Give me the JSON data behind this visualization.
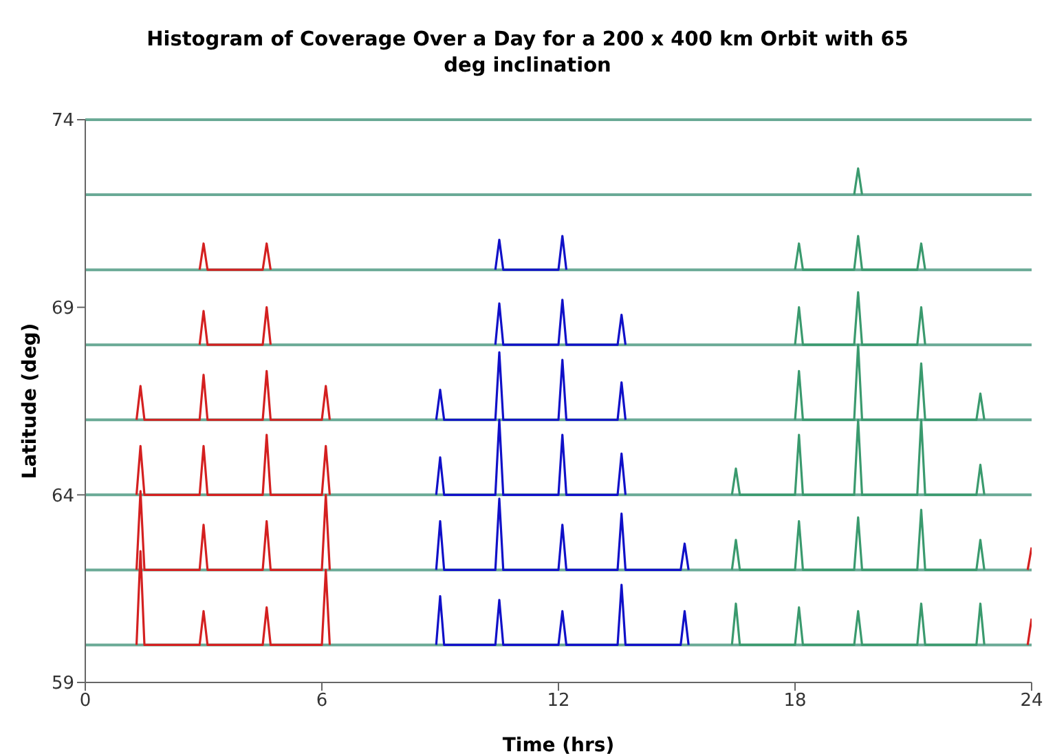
{
  "chart_data": {
    "type": "line",
    "title": "Histogram of Coverage Over a Day for a 200 x 400 km Orbit with 65 deg inclination",
    "xlabel": "Time (hrs)",
    "ylabel": "Latitude (deg)",
    "xlim": [
      0,
      24
    ],
    "xticks": [
      0,
      6,
      12,
      18,
      24
    ],
    "ylim": [
      59,
      74
    ],
    "yticks": [
      59,
      64,
      69,
      74
    ],
    "marker": "none",
    "line_style": "solid",
    "ref_lines": [
      {
        "axis": "y",
        "value": 60,
        "color": "#6aaa96"
      },
      {
        "axis": "y",
        "value": 62,
        "color": "#6aaa96"
      },
      {
        "axis": "y",
        "value": 64,
        "color": "#6aaa96"
      },
      {
        "axis": "y",
        "value": 66,
        "color": "#6aaa96"
      },
      {
        "axis": "y",
        "value": 68,
        "color": "#6aaa96"
      },
      {
        "axis": "y",
        "value": 70,
        "color": "#6aaa96"
      },
      {
        "axis": "y",
        "value": 72,
        "color": "#6aaa96"
      },
      {
        "axis": "y",
        "value": 74,
        "color": "#6aaa96"
      }
    ],
    "series": [
      {
        "color": "#d42020",
        "x": [
          1.3,
          1.4,
          1.5,
          2.9,
          3.0,
          3.1,
          4.5,
          4.6,
          4.7,
          6.0,
          6.1,
          6.2
        ],
        "values": [
          60,
          62.5,
          60,
          60,
          60.9,
          60,
          60,
          61.0,
          60,
          60,
          62.0,
          60
        ]
      },
      {
        "color": "#d42020",
        "x": [
          1.3,
          1.4,
          1.5,
          2.9,
          3.0,
          3.1,
          4.5,
          4.6,
          4.7,
          6.0,
          6.1,
          6.2
        ],
        "values": [
          62,
          64.1,
          62,
          62,
          63.2,
          62,
          62,
          63.3,
          62,
          62,
          64.0,
          62
        ]
      },
      {
        "color": "#d42020",
        "x": [
          1.3,
          1.4,
          1.5,
          2.9,
          3.0,
          3.1,
          4.5,
          4.6,
          4.7,
          6.0,
          6.1,
          6.2
        ],
        "values": [
          64,
          65.3,
          64,
          64,
          65.3,
          64,
          64,
          65.6,
          64,
          64,
          65.3,
          64
        ]
      },
      {
        "color": "#d42020",
        "x": [
          1.3,
          1.4,
          1.5,
          2.9,
          3.0,
          3.1,
          4.5,
          4.6,
          4.7,
          6.0,
          6.1,
          6.2
        ],
        "values": [
          66,
          66.9,
          66,
          66,
          67.2,
          66,
          66,
          67.3,
          66,
          66,
          66.9,
          66
        ]
      },
      {
        "color": "#d42020",
        "x": [
          2.9,
          3.0,
          3.1,
          4.5,
          4.6,
          4.7
        ],
        "values": [
          68,
          68.9,
          68,
          68,
          69.0,
          68
        ]
      },
      {
        "color": "#d42020",
        "x": [
          2.9,
          3.0,
          3.1,
          4.5,
          4.6,
          4.7
        ],
        "values": [
          70,
          70.7,
          70,
          70,
          70.7,
          70
        ]
      },
      {
        "color": "#1010c8",
        "x": [
          8.9,
          9.0,
          9.1,
          10.4,
          10.5,
          10.6,
          12.0,
          12.1,
          12.2,
          13.5,
          13.6,
          13.7,
          15.1,
          15.2,
          15.3
        ],
        "values": [
          60,
          61.3,
          60,
          60,
          61.2,
          60,
          60,
          60.9,
          60,
          60,
          61.6,
          60,
          60,
          60.9,
          60
        ]
      },
      {
        "color": "#1010c8",
        "x": [
          8.9,
          9.0,
          9.1,
          10.4,
          10.5,
          10.6,
          12.0,
          12.1,
          12.2,
          13.5,
          13.6,
          13.7,
          15.1,
          15.2,
          15.3
        ],
        "values": [
          62,
          63.3,
          62,
          62,
          63.9,
          62,
          62,
          63.2,
          62,
          62,
          63.5,
          62,
          62,
          62.7,
          62
        ]
      },
      {
        "color": "#1010c8",
        "x": [
          8.9,
          9.0,
          9.1,
          10.4,
          10.5,
          10.6,
          12.0,
          12.1,
          12.2,
          13.5,
          13.6,
          13.7
        ],
        "values": [
          64,
          65.0,
          64,
          64,
          66.0,
          64,
          64,
          65.6,
          64,
          64,
          65.1,
          64
        ]
      },
      {
        "color": "#1010c8",
        "x": [
          8.9,
          9.0,
          9.1,
          10.4,
          10.5,
          10.6,
          12.0,
          12.1,
          12.2,
          13.5,
          13.6,
          13.7
        ],
        "values": [
          66,
          66.8,
          66,
          66,
          67.8,
          66,
          66,
          67.6,
          66,
          66,
          67.0,
          66
        ]
      },
      {
        "color": "#1010c8",
        "x": [
          10.4,
          10.5,
          10.6,
          12.0,
          12.1,
          12.2,
          13.5,
          13.6,
          13.7
        ],
        "values": [
          68,
          69.1,
          68,
          68,
          69.2,
          68,
          68,
          68.8,
          68
        ]
      },
      {
        "color": "#1010c8",
        "x": [
          10.4,
          10.5,
          10.6,
          12.0,
          12.1,
          12.2
        ],
        "values": [
          70,
          70.8,
          70,
          70,
          70.9,
          70
        ]
      },
      {
        "color": "#3a9a6e",
        "x": [
          16.4,
          16.5,
          16.6,
          18.0,
          18.1,
          18.2,
          19.5,
          19.6,
          19.7,
          21.1,
          21.2,
          21.3,
          22.6,
          22.7,
          22.8
        ],
        "values": [
          60,
          61.1,
          60,
          60,
          61.0,
          60,
          60,
          60.9,
          60,
          60,
          61.1,
          60,
          60,
          61.1,
          60
        ]
      },
      {
        "color": "#3a9a6e",
        "x": [
          16.4,
          16.5,
          16.6,
          18.0,
          18.1,
          18.2,
          19.5,
          19.6,
          19.7,
          21.1,
          21.2,
          21.3,
          22.6,
          22.7,
          22.8
        ],
        "values": [
          62,
          62.8,
          62,
          62,
          63.3,
          62,
          62,
          63.4,
          62,
          62,
          63.6,
          62,
          62,
          62.8,
          62
        ]
      },
      {
        "color": "#3a9a6e",
        "x": [
          16.4,
          16.5,
          16.6,
          18.0,
          18.1,
          18.2,
          19.5,
          19.6,
          19.7,
          21.1,
          21.2,
          21.3,
          22.6,
          22.7,
          22.8
        ],
        "values": [
          64,
          64.7,
          64,
          64,
          65.6,
          64,
          64,
          66.0,
          64,
          64,
          66.0,
          64,
          64,
          64.8,
          64
        ]
      },
      {
        "color": "#3a9a6e",
        "x": [
          18.0,
          18.1,
          18.2,
          19.5,
          19.6,
          19.7,
          21.1,
          21.2,
          21.3,
          22.6,
          22.7,
          22.8
        ],
        "values": [
          66,
          67.3,
          66,
          66,
          68.0,
          66,
          66,
          67.5,
          66,
          66,
          66.7,
          66
        ]
      },
      {
        "color": "#3a9a6e",
        "x": [
          18.0,
          18.1,
          18.2,
          19.5,
          19.6,
          19.7,
          21.1,
          21.2,
          21.3
        ],
        "values": [
          68,
          69.0,
          68,
          68,
          69.4,
          68,
          68,
          69.0,
          68
        ]
      },
      {
        "color": "#3a9a6e",
        "x": [
          18.0,
          18.1,
          18.2,
          19.5,
          19.6,
          19.7,
          21.1,
          21.2,
          21.3
        ],
        "values": [
          70,
          70.7,
          70,
          70,
          70.9,
          70,
          70,
          70.7,
          70
        ]
      },
      {
        "color": "#3a9a6e",
        "x": [
          19.5,
          19.6,
          19.7
        ],
        "values": [
          72,
          72.7,
          72
        ]
      },
      {
        "color": "#d42020",
        "x": [
          23.9,
          24
        ],
        "values": [
          60,
          60.7
        ]
      },
      {
        "color": "#d42020",
        "x": [
          23.9,
          24
        ],
        "values": [
          62,
          62.6
        ]
      }
    ]
  }
}
